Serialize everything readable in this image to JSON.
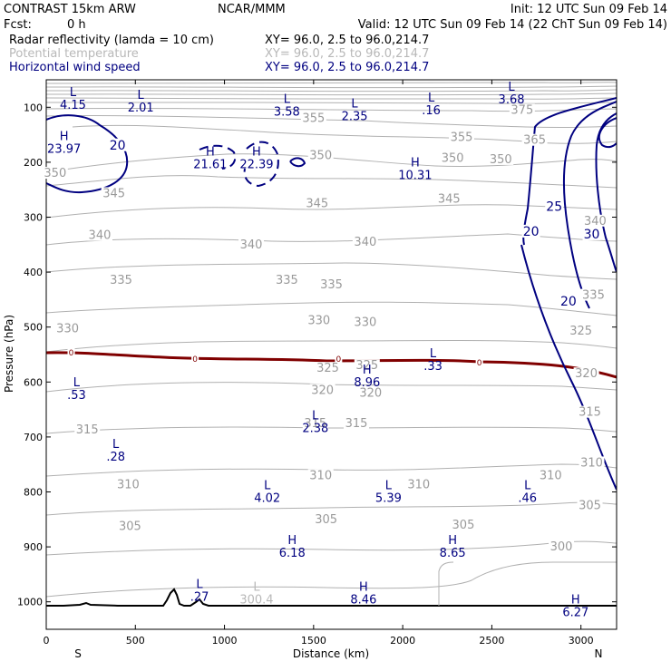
{
  "header": {
    "model": "CONTRAST 15km ARW",
    "org": "NCAR/MMM",
    "init": "Init: 12 UTC Sun 09 Feb 14",
    "fcst_label": "Fcst:",
    "fcst_value": "0 h",
    "valid": "Valid: 12 UTC Sun 09 Feb 14 (22 ChT Sun 09 Feb 14)"
  },
  "fields": [
    {
      "name": "Radar reflectivity (lamda = 10 cm)",
      "xy": "XY=  96.0,  2.5 to  96.0,214.7",
      "color": "#000000"
    },
    {
      "name": "Potential temperature",
      "xy": "XY=  96.0,  2.5 to  96.0,214.7",
      "color": "#b8b8b8"
    },
    {
      "name": "Horizontal wind speed",
      "xy": "XY=  96.0,  2.5 to  96.0,214.7",
      "color": "#000080"
    }
  ],
  "chart_data": {
    "type": "cross-section contour",
    "xlabel": "Distance (km)",
    "ylabel": "Pressure (hPa)",
    "xlim": [
      0,
      3200
    ],
    "ylim": [
      1050,
      50
    ],
    "x_ticks": [
      0,
      500,
      1000,
      1500,
      2000,
      2500,
      3000
    ],
    "x_tick_labels": [
      "0",
      "500",
      "1000",
      "1500",
      "2000",
      "2500",
      "3000"
    ],
    "y_ticks": [
      100,
      200,
      300,
      400,
      500,
      600,
      700,
      800,
      900,
      1000
    ],
    "y_tick_labels": [
      "100",
      "200",
      "300",
      "400",
      "500",
      "600",
      "700",
      "800",
      "900",
      "1000"
    ],
    "endpoint_labels": {
      "left": "S",
      "right": "N"
    },
    "theta_isolines": [
      {
        "label": "375",
        "x": 2670,
        "p": 110
      },
      {
        "label": "365",
        "x": 2740,
        "p": 165
      },
      {
        "label": "355",
        "x": 1500,
        "p": 125
      },
      {
        "label": "355",
        "x": 2330,
        "p": 160
      },
      {
        "label": "350",
        "x": 50,
        "p": 225
      },
      {
        "label": "350",
        "x": 1540,
        "p": 193
      },
      {
        "label": "350",
        "x": 2280,
        "p": 198
      },
      {
        "label": "350",
        "x": 2550,
        "p": 200
      },
      {
        "label": "345",
        "x": 380,
        "p": 262
      },
      {
        "label": "345",
        "x": 1520,
        "p": 280
      },
      {
        "label": "345",
        "x": 2260,
        "p": 272
      },
      {
        "label": "340",
        "x": 300,
        "p": 338
      },
      {
        "label": "340",
        "x": 1150,
        "p": 355
      },
      {
        "label": "340",
        "x": 1790,
        "p": 350
      },
      {
        "label": "335",
        "x": 420,
        "p": 420
      },
      {
        "label": "335",
        "x": 1350,
        "p": 420
      },
      {
        "label": "335",
        "x": 1600,
        "p": 428
      },
      {
        "label": "330",
        "x": 120,
        "p": 508
      },
      {
        "label": "330",
        "x": 1530,
        "p": 493
      },
      {
        "label": "330",
        "x": 1790,
        "p": 496
      },
      {
        "label": "325",
        "x": 1580,
        "p": 580
      },
      {
        "label": "325",
        "x": 1800,
        "p": 575
      },
      {
        "label": "325",
        "x": 3000,
        "p": 512
      },
      {
        "label": "320",
        "x": 1550,
        "p": 620
      },
      {
        "label": "320",
        "x": 1820,
        "p": 625
      },
      {
        "label": "320",
        "x": 3030,
        "p": 590
      },
      {
        "label": "315",
        "x": 230,
        "p": 692
      },
      {
        "label": "315",
        "x": 1510,
        "p": 680
      },
      {
        "label": "315",
        "x": 1740,
        "p": 680
      },
      {
        "label": "315",
        "x": 3050,
        "p": 660
      },
      {
        "label": "310",
        "x": 460,
        "p": 792
      },
      {
        "label": "310",
        "x": 1540,
        "p": 775
      },
      {
        "label": "310",
        "x": 2090,
        "p": 792
      },
      {
        "label": "310",
        "x": 2830,
        "p": 775
      },
      {
        "label": "310",
        "x": 3060,
        "p": 752
      },
      {
        "label": "305",
        "x": 470,
        "p": 868
      },
      {
        "label": "305",
        "x": 1570,
        "p": 855
      },
      {
        "label": "305",
        "x": 2340,
        "p": 865
      },
      {
        "label": "305",
        "x": 3050,
        "p": 830
      },
      {
        "label": "300",
        "x": 2890,
        "p": 905
      },
      {
        "label": "335",
        "x": 3070,
        "p": 447
      },
      {
        "label": "340",
        "x": 3080,
        "p": 312
      }
    ],
    "wind_labels": [
      {
        "label": "20",
        "x": 400,
        "p": 175
      },
      {
        "label": "25",
        "x": 2850,
        "p": 287
      },
      {
        "label": "20",
        "x": 2720,
        "p": 332
      },
      {
        "label": "30",
        "x": 3060,
        "p": 337
      },
      {
        "label": "20",
        "x": 2930,
        "p": 459
      }
    ],
    "zero_line_labels": [
      {
        "label": "0",
        "x": 140,
        "p": 547
      },
      {
        "label": "0",
        "x": 835,
        "p": 558
      },
      {
        "label": "0",
        "x": 1640,
        "p": 558
      },
      {
        "label": "0",
        "x": 2430,
        "p": 565
      }
    ],
    "extrema": [
      {
        "type": "L",
        "value": "4.15",
        "x": 150,
        "p": 80,
        "color": "blue"
      },
      {
        "type": "L",
        "value": "2.01",
        "x": 530,
        "p": 85,
        "color": "blue"
      },
      {
        "type": "L",
        "value": "3.58",
        "x": 1350,
        "p": 92,
        "color": "blue"
      },
      {
        "type": "L",
        "value": "2.35",
        "x": 1730,
        "p": 100,
        "color": "blue"
      },
      {
        "type": "L",
        "value": ".16",
        "x": 2160,
        "p": 90,
        "color": "blue"
      },
      {
        "type": "L",
        "value": "3.68",
        "x": 2610,
        "p": 70,
        "color": "blue"
      },
      {
        "type": "H",
        "value": "23.97",
        "x": 100,
        "p": 160,
        "color": "blue"
      },
      {
        "type": "H",
        "value": "21.61",
        "x": 920,
        "p": 188,
        "color": "blue"
      },
      {
        "type": "H",
        "value": "22.39",
        "x": 1180,
        "p": 188,
        "color": "blue"
      },
      {
        "type": "H",
        "value": "10.31",
        "x": 2070,
        "p": 208,
        "color": "blue"
      },
      {
        "type": "L",
        "value": ".33",
        "x": 2170,
        "p": 555,
        "color": "blue"
      },
      {
        "type": "H",
        "value": "8.96",
        "x": 1800,
        "p": 585,
        "color": "blue"
      },
      {
        "type": "L",
        "value": ".53",
        "x": 170,
        "p": 608,
        "color": "blue"
      },
      {
        "type": "L",
        "value": "2.38",
        "x": 1510,
        "p": 668,
        "color": "blue"
      },
      {
        "type": "L",
        "value": ".28",
        "x": 390,
        "p": 720,
        "color": "blue"
      },
      {
        "type": "L",
        "value": "4.02",
        "x": 1240,
        "p": 795,
        "color": "blue"
      },
      {
        "type": "L",
        "value": "5.39",
        "x": 1920,
        "p": 795,
        "color": "blue"
      },
      {
        "type": "L",
        "value": ".46",
        "x": 2700,
        "p": 795,
        "color": "blue"
      },
      {
        "type": "H",
        "value": "6.18",
        "x": 1380,
        "p": 895,
        "color": "blue"
      },
      {
        "type": "H",
        "value": "8.65",
        "x": 2280,
        "p": 895,
        "color": "blue"
      },
      {
        "type": "L",
        "value": ".27",
        "x": 860,
        "p": 975,
        "color": "blue"
      },
      {
        "type": "L",
        "value": "300.4",
        "x": 1180,
        "p": 980,
        "color": "grey"
      },
      {
        "type": "H",
        "value": "8.46",
        "x": 1780,
        "p": 980,
        "color": "blue"
      },
      {
        "type": "H",
        "value": "6.27",
        "x": 2970,
        "p": 1003,
        "color": "blue"
      }
    ]
  }
}
